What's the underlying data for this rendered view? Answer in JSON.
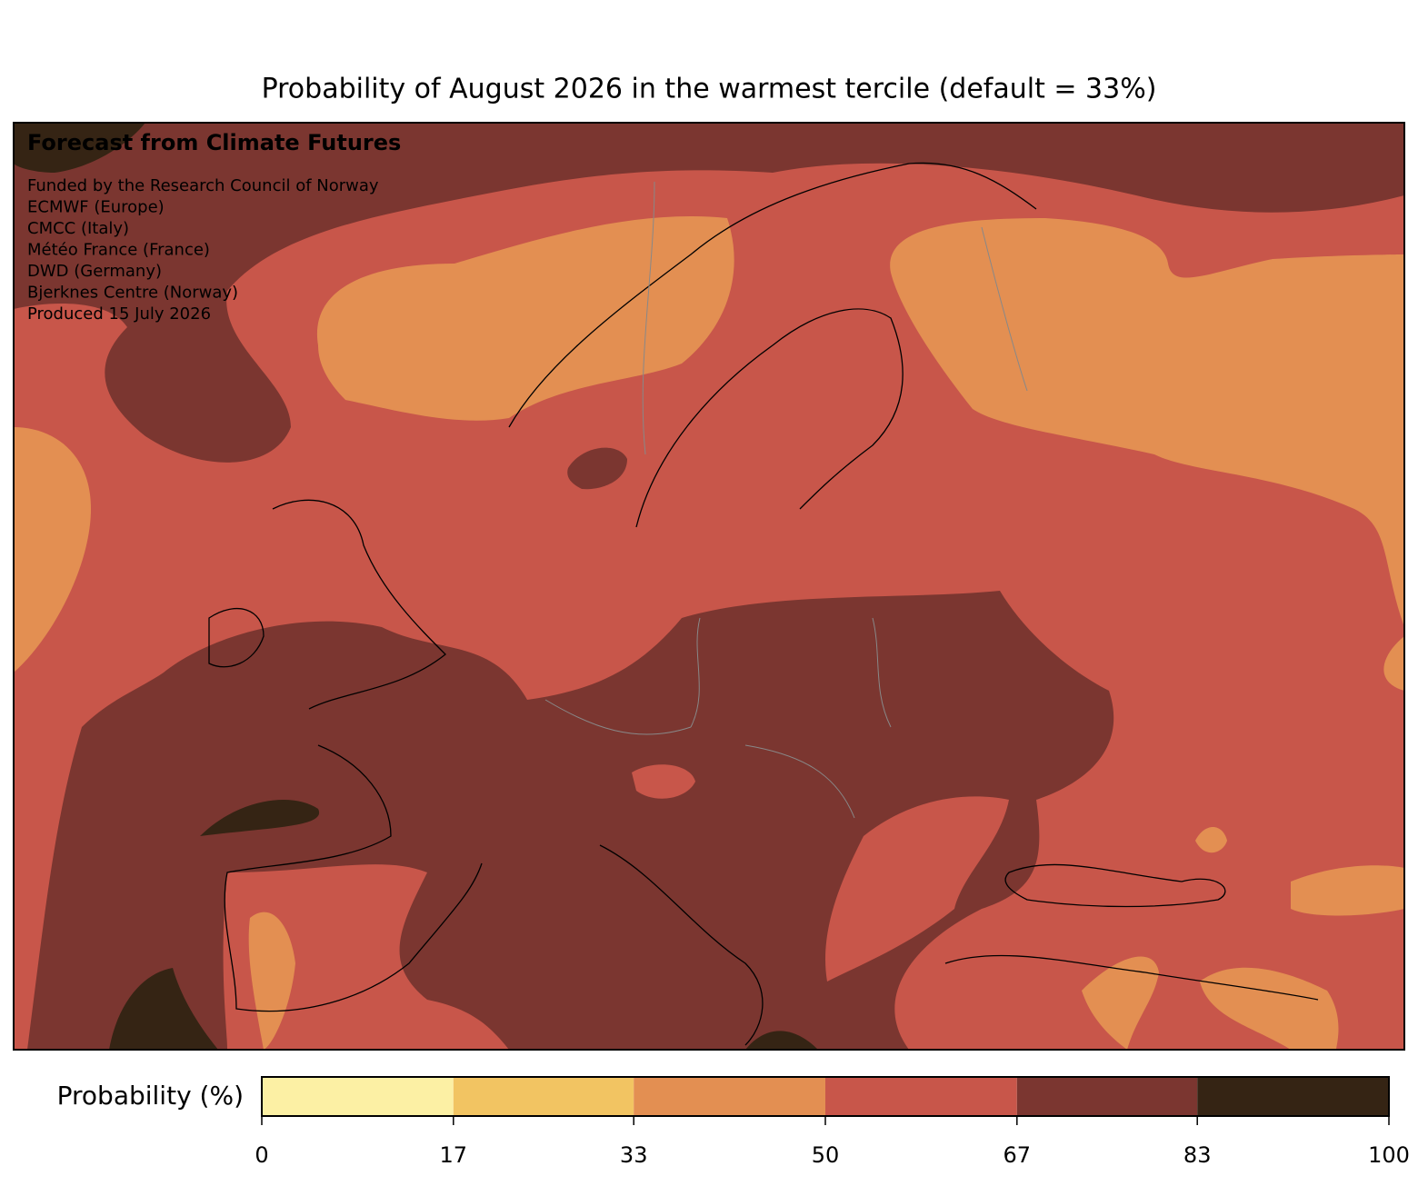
{
  "chart_data": {
    "type": "map",
    "title": "Probability of August 2026 in the warmest tercile (default = 33%)",
    "annotations": {
      "heading": "Forecast from Climate Futures",
      "lines": [
        "Funded by the Research Council of Norway",
        "ECMWF (Europe)",
        "CMCC (Italy)",
        "Météo France (France)",
        "DWD (Germany)",
        "Bjerknes Centre (Norway)",
        "Produced 15 July 2026"
      ]
    },
    "colorbar": {
      "label": "Probability (%)",
      "bins": [
        0,
        17,
        33,
        50,
        67,
        83,
        100
      ],
      "colors": [
        "#fcf0a4",
        "#f2c462",
        "#e38f52",
        "#c8564a",
        "#7b3630",
        "#352414"
      ],
      "xlim": [
        0,
        100
      ],
      "xticks": [
        0,
        17,
        33,
        50,
        67,
        83,
        100
      ]
    }
  }
}
